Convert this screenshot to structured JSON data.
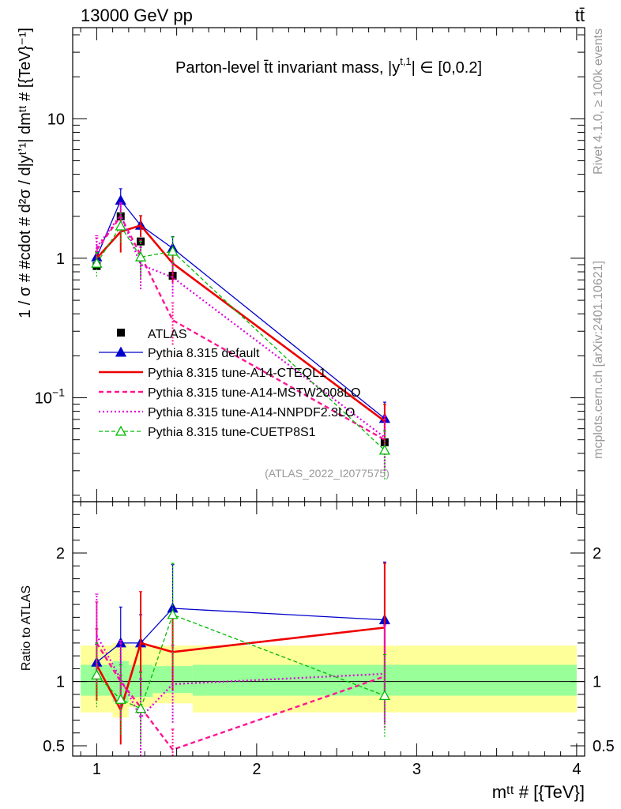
{
  "header": {
    "left": "13000 GeV pp",
    "right": "tt̄"
  },
  "side_labels": {
    "rivet": "Rivet 4.1.0, ≥ 100k events",
    "mcplots": "mcplots.cern.ch [arXiv:2401.10621]"
  },
  "chart_data": {
    "type": "line",
    "title": "Parton-level t̄t invariant mass, |y^{t,1}| ∈ [0,0.2]",
    "title_text": "Parton-level t̄t invariant mass, |y",
    "title_sup": "t,1",
    "title_tail": "| ∈ [0,0.2]",
    "ylabel": "1 / σ # #cdot # d²σ / d|y^{t,1}| dm^{t̄t} # [{TeV}⁻¹]",
    "ylabel_text": "1 / σ # #cdot # d²σ / d|yᵗʼ¹| dmᵗᵗ # [{TeV}⁻¹]",
    "xlabel": "m^{t̄t} # [{TeV}]",
    "xlabel_text": "mᵗᵗ # [{TeV}]",
    "ratio_ylabel": "Ratio to ATLAS",
    "analysis_tag": "(ATLAS_2022_I2077575)",
    "xlim": [
      0.85,
      4.05
    ],
    "ylim": [
      0.018,
      45
    ],
    "ratio_ylim": [
      0.42,
      2.4
    ],
    "x_ticks": [
      {
        "value": 1,
        "label": "1"
      },
      {
        "value": 2,
        "label": "2"
      },
      {
        "value": 3,
        "label": "3"
      },
      {
        "value": 4,
        "label": "4"
      }
    ],
    "y_ticks": [
      {
        "value": 0.1,
        "label": "10",
        "sup": "−1"
      },
      {
        "value": 1,
        "label": "1",
        "sup": ""
      },
      {
        "value": 10,
        "label": "10",
        "sup": ""
      }
    ],
    "ratio_ticks": [
      {
        "value": 0.5,
        "label": "0.5"
      },
      {
        "value": 1,
        "label": "1"
      },
      {
        "value": 2,
        "label": "2"
      }
    ],
    "x": [
      1.0,
      1.15,
      1.275,
      1.475,
      2.8
    ],
    "data": {
      "name": "ATLAS",
      "values": [
        0.88,
        2.0,
        1.32,
        0.75,
        0.048
      ],
      "xerr_lo": [
        0.1,
        0.05,
        0.075,
        0.125,
        1.2
      ],
      "xerr_hi": [
        0.1,
        0.05,
        0.075,
        0.125,
        1.2
      ]
    },
    "bands": [
      {
        "x0": 0.9,
        "x1": 1.1,
        "y1lo": 0.89,
        "y1hi": 1.13,
        "y2lo": 0.76,
        "y2hi": 1.28
      },
      {
        "x0": 1.1,
        "x1": 1.2,
        "y1lo": 0.84,
        "y1hi": 1.16,
        "y2lo": 0.72,
        "y2hi": 1.3
      },
      {
        "x0": 1.2,
        "x1": 1.35,
        "y1lo": 0.88,
        "y1hi": 1.13,
        "y2lo": 0.8,
        "y2hi": 1.28
      },
      {
        "x0": 1.35,
        "x1": 1.6,
        "y1lo": 0.91,
        "y1hi": 1.12,
        "y2lo": 0.83,
        "y2hi": 1.28
      },
      {
        "x0": 1.6,
        "x1": 4.0,
        "y1lo": 0.89,
        "y1hi": 1.13,
        "y2lo": 0.76,
        "y2hi": 1.28
      }
    ],
    "series": [
      {
        "name": "Pythia 8.315 default",
        "color": "#0000cc",
        "dash": "",
        "width": 1.3,
        "marker": "triangle-filled",
        "values": [
          1.02,
          2.6,
          1.72,
          1.18,
          0.071
        ],
        "errs": [
          0.1,
          0.55,
          0.3,
          0.25,
          0.022
        ],
        "ratio": [
          1.15,
          1.3,
          1.3,
          1.57,
          1.48
        ],
        "ratio_errs": [
          0.14,
          0.28,
          0.22,
          0.34,
          0.45
        ]
      },
      {
        "name": "Pythia 8.315 tune-A14-CTEQL1",
        "color": "#ee0000",
        "dash": "",
        "width": 2.6,
        "marker": "none",
        "values": [
          1.0,
          1.55,
          1.72,
          0.92,
          0.068
        ],
        "errs": [
          0.12,
          0.45,
          0.3,
          0.25,
          0.022
        ],
        "ratio": [
          1.13,
          0.78,
          1.3,
          1.23,
          1.42
        ],
        "ratio_errs": [
          0.28,
          0.27,
          0.4,
          0.3,
          0.5
        ]
      },
      {
        "name": "Pythia 8.315 tune-A14-MSTW2008LO",
        "color": "#ff1493",
        "dash": "6,4",
        "width": 2.4,
        "marker": "none",
        "values": [
          1.15,
          2.0,
          1.05,
          0.36,
          0.05
        ],
        "errs": [
          0.25,
          0.45,
          0.3,
          0.12,
          0.02
        ],
        "ratio": [
          1.3,
          1.0,
          0.8,
          0.47,
          1.04
        ],
        "ratio_errs": [
          0.32,
          0.3,
          0.28,
          0.16,
          0.4
        ]
      },
      {
        "name": "Pythia 8.315 tune-A14-NNPDF2.3LO",
        "color": "#dd00dd",
        "dash": "2,3",
        "width": 2.2,
        "marker": "none",
        "values": [
          1.2,
          2.05,
          0.9,
          0.73,
          0.052
        ],
        "errs": [
          0.25,
          0.45,
          0.3,
          0.2,
          0.022
        ],
        "ratio": [
          1.36,
          1.02,
          0.72,
          0.98,
          1.06
        ],
        "ratio_errs": [
          0.32,
          0.3,
          0.3,
          0.3,
          0.38
        ]
      },
      {
        "name": "Pythia 8.315 tune-CUETP8S1",
        "color": "#00bb00",
        "dash": "5,3",
        "width": 1.3,
        "marker": "triangle-open",
        "values": [
          0.92,
          1.7,
          1.02,
          1.12,
          0.042
        ],
        "errs": [
          0.18,
          0.4,
          0.3,
          0.3,
          0.016
        ],
        "ratio": [
          1.05,
          0.86,
          0.79,
          1.52,
          0.89
        ],
        "ratio_errs": [
          0.25,
          0.27,
          0.28,
          0.4,
          0.32
        ]
      }
    ]
  }
}
